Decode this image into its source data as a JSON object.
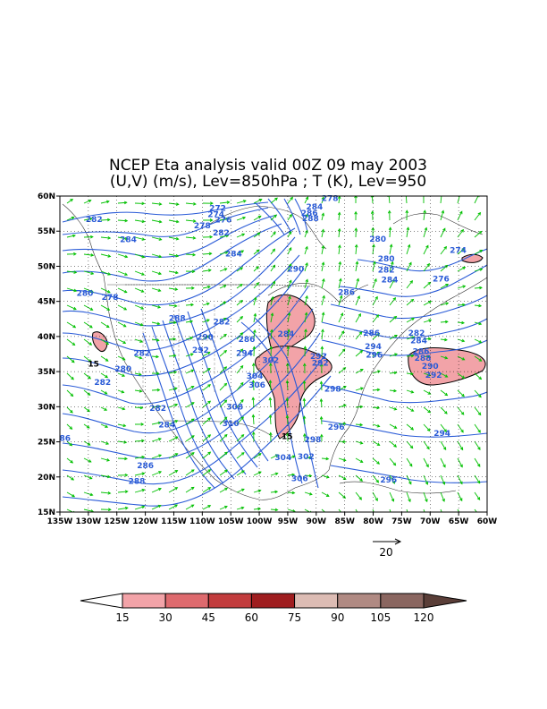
{
  "title": {
    "line1": "NCEP Eta analysis valid 00Z 09 may 2003",
    "line2": "(U,V) (m/s), Lev=850hPa ; T (K), Lev=950"
  },
  "map": {
    "lon_range": [
      -135,
      -60
    ],
    "lat_range": [
      15,
      60
    ],
    "lat_ticks": [
      "60N",
      "55N",
      "50N",
      "45N",
      "40N",
      "35N",
      "30N",
      "25N",
      "20N",
      "15N"
    ],
    "lon_ticks": [
      "135W",
      "130W",
      "125W",
      "120W",
      "115W",
      "110W",
      "105W",
      "100W",
      "95W",
      "90W",
      "85W",
      "80W",
      "75W",
      "70W",
      "65W",
      "60W"
    ]
  },
  "contour_labels": [
    {
      "text": "282",
      "lon": -129,
      "lat": 56.7
    },
    {
      "text": "284",
      "lon": -123,
      "lat": 53.8
    },
    {
      "text": "278",
      "lon": -110,
      "lat": 55.8
    },
    {
      "text": "272",
      "lon": -107.3,
      "lat": 58.3
    },
    {
      "text": "274",
      "lon": -107.6,
      "lat": 57.4
    },
    {
      "text": "276",
      "lon": -106.3,
      "lat": 56.6
    },
    {
      "text": "282",
      "lon": -106.7,
      "lat": 54.8
    },
    {
      "text": "284",
      "lon": -104.5,
      "lat": 51.8
    },
    {
      "text": "278",
      "lon": -87.6,
      "lat": 59.7
    },
    {
      "text": "284",
      "lon": -90.3,
      "lat": 58.5
    },
    {
      "text": "286",
      "lon": -91.2,
      "lat": 57.6
    },
    {
      "text": "288",
      "lon": -91,
      "lat": 56.8
    },
    {
      "text": "290",
      "lon": -93.6,
      "lat": 49.6
    },
    {
      "text": "280",
      "lon": -130.6,
      "lat": 46.2
    },
    {
      "text": "278",
      "lon": -126.2,
      "lat": 45.6
    },
    {
      "text": "288",
      "lon": -114.4,
      "lat": 42.6
    },
    {
      "text": "282",
      "lon": -106.6,
      "lat": 42.1
    },
    {
      "text": "290",
      "lon": -109.5,
      "lat": 39.9
    },
    {
      "text": "292",
      "lon": -110.3,
      "lat": 38.1
    },
    {
      "text": "286",
      "lon": -102.2,
      "lat": 39.6
    },
    {
      "text": "294",
      "lon": -102.6,
      "lat": 37.6
    },
    {
      "text": "284",
      "lon": -95.3,
      "lat": 40.4
    },
    {
      "text": "302",
      "lon": -98,
      "lat": 36.6
    },
    {
      "text": "304",
      "lon": -100.8,
      "lat": 34.4
    },
    {
      "text": "306",
      "lon": -100.4,
      "lat": 33.1
    },
    {
      "text": "292",
      "lon": -89.6,
      "lat": 37.2
    },
    {
      "text": "292",
      "lon": -89.3,
      "lat": 36.2
    },
    {
      "text": "286",
      "lon": -84.7,
      "lat": 46.3
    },
    {
      "text": "286",
      "lon": -80.3,
      "lat": 40.5
    },
    {
      "text": "294",
      "lon": -80,
      "lat": 38.6
    },
    {
      "text": "296",
      "lon": -79.8,
      "lat": 37.4
    },
    {
      "text": "280",
      "lon": -79.2,
      "lat": 53.9
    },
    {
      "text": "280",
      "lon": -77.7,
      "lat": 51.1
    },
    {
      "text": "282",
      "lon": -77.7,
      "lat": 49.5
    },
    {
      "text": "284",
      "lon": -77.1,
      "lat": 48.1
    },
    {
      "text": "274",
      "lon": -65.1,
      "lat": 52.3
    },
    {
      "text": "276",
      "lon": -68.1,
      "lat": 48.2
    },
    {
      "text": "282",
      "lon": -72.4,
      "lat": 40.5
    },
    {
      "text": "284",
      "lon": -72,
      "lat": 39.4
    },
    {
      "text": "286",
      "lon": -71.6,
      "lat": 37.9
    },
    {
      "text": "288",
      "lon": -71.3,
      "lat": 36.9
    },
    {
      "text": "290",
      "lon": -70,
      "lat": 35.8
    },
    {
      "text": "292",
      "lon": -69.4,
      "lat": 34.5
    },
    {
      "text": "282",
      "lon": -120.6,
      "lat": 37.6
    },
    {
      "text": "280",
      "lon": -123.9,
      "lat": 35.4
    },
    {
      "text": "282",
      "lon": -127.5,
      "lat": 33.5
    },
    {
      "text": "298",
      "lon": -87.1,
      "lat": 32.5
    },
    {
      "text": "308",
      "lon": -104.3,
      "lat": 30
    },
    {
      "text": "310",
      "lon": -105,
      "lat": 27.6
    },
    {
      "text": "282",
      "lon": -117.8,
      "lat": 29.8
    },
    {
      "text": "284",
      "lon": -116.2,
      "lat": 27.4
    },
    {
      "text": "296",
      "lon": -86.5,
      "lat": 27.1
    },
    {
      "text": "298",
      "lon": -90.6,
      "lat": 25.3
    },
    {
      "text": "294",
      "lon": -67.9,
      "lat": 26.2
    },
    {
      "text": "86",
      "lon": -134.1,
      "lat": 25.5
    },
    {
      "text": "304",
      "lon": -95.8,
      "lat": 22.8
    },
    {
      "text": "302",
      "lon": -91.8,
      "lat": 22.9
    },
    {
      "text": "286",
      "lon": -120,
      "lat": 21.6
    },
    {
      "text": "306",
      "lon": -92.9,
      "lat": 19.8
    },
    {
      "text": "288",
      "lon": -121.5,
      "lat": 19.4
    },
    {
      "text": "296",
      "lon": -77.3,
      "lat": 19.6
    },
    {
      "text": "15",
      "lon": -129.1,
      "lat": 36.1
    },
    {
      "text": "15",
      "lon": -95.1,
      "lat": 25.8
    }
  ],
  "colorbar": {
    "labels": [
      "15",
      "30",
      "45",
      "60",
      "75",
      "90",
      "105",
      "120"
    ],
    "colors": [
      "#ffffff",
      "#f2a3a8",
      "#de6a6e",
      "#c23c3d",
      "#9f1d1f",
      "#dcbcb4",
      "#b08a83",
      "#8a6660",
      "#5a3e38"
    ]
  },
  "reference_vector": {
    "label": "20"
  }
}
